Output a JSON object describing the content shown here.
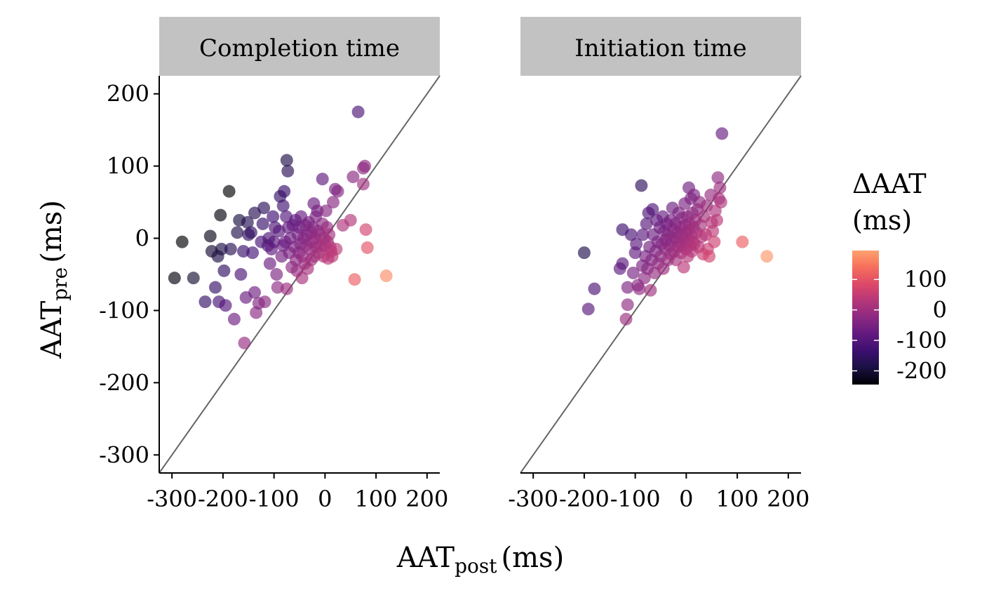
{
  "chart_data": {
    "type": "scatter",
    "ylabel": {
      "base": "AAT",
      "sub": "pre",
      "unit": "(ms)"
    },
    "xlabel": {
      "base": "AAT",
      "sub": "post",
      "unit": "(ms)"
    },
    "xlim": [
      -325,
      225
    ],
    "ylim": [
      -325,
      225
    ],
    "xticks": [
      -300,
      -200,
      -100,
      0,
      100,
      200
    ],
    "yticks": [
      -300,
      -200,
      -100,
      0,
      100,
      200
    ],
    "reference_line": "identity (y = x)",
    "grid": false,
    "legend": {
      "title_line1": "ΔAAT",
      "title_line2": "(ms)",
      "placement": "right",
      "range": [
        -245,
        195
      ],
      "ticks": [
        100,
        0,
        -100,
        -200
      ],
      "colormap": "magma"
    },
    "panels": [
      {
        "title": "Completion time",
        "points": [
          [
            -295,
            -55
          ],
          [
            -280,
            -5
          ],
          [
            -258,
            -55
          ],
          [
            -235,
            -88
          ],
          [
            -225,
            3
          ],
          [
            -222,
            -18
          ],
          [
            -215,
            -68
          ],
          [
            -210,
            -25
          ],
          [
            -208,
            -88
          ],
          [
            -205,
            32
          ],
          [
            -203,
            -15
          ],
          [
            -198,
            -45
          ],
          [
            -195,
            -93
          ],
          [
            -188,
            65
          ],
          [
            -185,
            -15
          ],
          [
            -178,
            -112
          ],
          [
            -172,
            8
          ],
          [
            -168,
            25
          ],
          [
            -165,
            -50
          ],
          [
            -160,
            -18
          ],
          [
            -158,
            -145
          ],
          [
            -155,
            -82
          ],
          [
            -152,
            22
          ],
          [
            -150,
            5
          ],
          [
            -145,
            8
          ],
          [
            -142,
            -20
          ],
          [
            -138,
            -75
          ],
          [
            -138,
            35
          ],
          [
            -135,
            -103
          ],
          [
            -130,
            -90
          ],
          [
            -125,
            -5
          ],
          [
            -122,
            20
          ],
          [
            -120,
            42
          ],
          [
            -118,
            -88
          ],
          [
            -112,
            -10
          ],
          [
            -110,
            0
          ],
          [
            -108,
            -35
          ],
          [
            -105,
            -15
          ],
          [
            -102,
            30
          ],
          [
            -100,
            -5
          ],
          [
            -98,
            15
          ],
          [
            -95,
            -50
          ],
          [
            -93,
            -68
          ],
          [
            -90,
            10
          ],
          [
            -88,
            58
          ],
          [
            -85,
            -25
          ],
          [
            -82,
            45
          ],
          [
            -82,
            -10
          ],
          [
            -80,
            65
          ],
          [
            -78,
            -5
          ],
          [
            -76,
            30
          ],
          [
            -75,
            108
          ],
          [
            -75,
            -70
          ],
          [
            -73,
            93
          ],
          [
            -72,
            15
          ],
          [
            -70,
            -20
          ],
          [
            -68,
            0
          ],
          [
            -65,
            -40
          ],
          [
            -63,
            18
          ],
          [
            -60,
            -12
          ],
          [
            -58,
            25
          ],
          [
            -57,
            -30
          ],
          [
            -55,
            -45
          ],
          [
            -53,
            5
          ],
          [
            -51,
            -20
          ],
          [
            -50,
            15
          ],
          [
            -48,
            -8
          ],
          [
            -47,
            30
          ],
          [
            -45,
            -55
          ],
          [
            -44,
            -25
          ],
          [
            -42,
            0
          ],
          [
            -40,
            -35
          ],
          [
            -38,
            18
          ],
          [
            -37,
            -10
          ],
          [
            -35,
            5
          ],
          [
            -34,
            -42
          ],
          [
            -32,
            22
          ],
          [
            -30,
            -15
          ],
          [
            -28,
            8
          ],
          [
            -27,
            -30
          ],
          [
            -25,
            -5
          ],
          [
            -24,
            15
          ],
          [
            -22,
            48
          ],
          [
            -21,
            -25
          ],
          [
            -20,
            0
          ],
          [
            -18,
            30
          ],
          [
            -17,
            -12
          ],
          [
            -15,
            38
          ],
          [
            -14,
            10
          ],
          [
            -12,
            -20
          ],
          [
            -10,
            5
          ],
          [
            -8,
            -10
          ],
          [
            -5,
            82
          ],
          [
            -5,
            20
          ],
          [
            -3,
            -25
          ],
          [
            -2,
            0
          ],
          [
            0,
            -10
          ],
          [
            2,
            38
          ],
          [
            4,
            15
          ],
          [
            5,
            -5
          ],
          [
            6,
            -28
          ],
          [
            8,
            5
          ],
          [
            10,
            -12
          ],
          [
            12,
            -18
          ],
          [
            14,
            -25
          ],
          [
            16,
            50
          ],
          [
            20,
            68
          ],
          [
            22,
            -15
          ],
          [
            25,
            65
          ],
          [
            35,
            18
          ],
          [
            50,
            25
          ],
          [
            55,
            85
          ],
          [
            58,
            -57
          ],
          [
            65,
            175
          ],
          [
            75,
            75
          ],
          [
            75,
            97
          ],
          [
            78,
            100
          ],
          [
            80,
            12
          ],
          [
            83,
            -13
          ],
          [
            120,
            -52
          ]
        ]
      },
      {
        "title": "Initiation time",
        "points": [
          [
            -200,
            -20
          ],
          [
            -192,
            -98
          ],
          [
            -180,
            -70
          ],
          [
            -130,
            -42
          ],
          [
            -125,
            -35
          ],
          [
            -125,
            12
          ],
          [
            -118,
            -112
          ],
          [
            -115,
            -92
          ],
          [
            -115,
            -68
          ],
          [
            -108,
            5
          ],
          [
            -104,
            -48
          ],
          [
            -100,
            -20
          ],
          [
            -98,
            -8
          ],
          [
            -95,
            -65
          ],
          [
            -92,
            -70
          ],
          [
            -88,
            73
          ],
          [
            -86,
            -38
          ],
          [
            -85,
            5
          ],
          [
            -82,
            -55
          ],
          [
            -80,
            -25
          ],
          [
            -78,
            20
          ],
          [
            -76,
            -42
          ],
          [
            -74,
            35
          ],
          [
            -72,
            -12
          ],
          [
            -70,
            -72
          ],
          [
            -68,
            -30
          ],
          [
            -66,
            40
          ],
          [
            -65,
            5
          ],
          [
            -62,
            -48
          ],
          [
            -60,
            -18
          ],
          [
            -58,
            25
          ],
          [
            -56,
            -5
          ],
          [
            -55,
            -35
          ],
          [
            -52,
            15
          ],
          [
            -50,
            -25
          ],
          [
            -48,
            -8
          ],
          [
            -46,
            30
          ],
          [
            -45,
            -42
          ],
          [
            -43,
            10
          ],
          [
            -41,
            -15
          ],
          [
            -40,
            -2
          ],
          [
            -38,
            20
          ],
          [
            -36,
            -30
          ],
          [
            -35,
            5
          ],
          [
            -33,
            -10
          ],
          [
            -31,
            25
          ],
          [
            -30,
            -22
          ],
          [
            -28,
            -3
          ],
          [
            -27,
            42
          ],
          [
            -25,
            12
          ],
          [
            -24,
            -18
          ],
          [
            -22,
            0
          ],
          [
            -21,
            20
          ],
          [
            -20,
            -30
          ],
          [
            -18,
            8
          ],
          [
            -16,
            -12
          ],
          [
            -15,
            35
          ],
          [
            -14,
            -5
          ],
          [
            -12,
            15
          ],
          [
            -10,
            -20
          ],
          [
            -9,
            5
          ],
          [
            -8,
            28
          ],
          [
            -6,
            -10
          ],
          [
            -5,
            -40
          ],
          [
            -4,
            0
          ],
          [
            -3,
            48
          ],
          [
            -2,
            18
          ],
          [
            -1,
            -15
          ],
          [
            0,
            8
          ],
          [
            1,
            -5
          ],
          [
            2,
            30
          ],
          [
            3,
            -25
          ],
          [
            4,
            12
          ],
          [
            5,
            70
          ],
          [
            6,
            -2
          ],
          [
            7,
            20
          ],
          [
            8,
            -10
          ],
          [
            9,
            55
          ],
          [
            10,
            5
          ],
          [
            11,
            -18
          ],
          [
            12,
            35
          ],
          [
            13,
            -5
          ],
          [
            14,
            15
          ],
          [
            15,
            60
          ],
          [
            16,
            -8
          ],
          [
            18,
            25
          ],
          [
            20,
            8
          ],
          [
            22,
            40
          ],
          [
            24,
            -12
          ],
          [
            26,
            50
          ],
          [
            28,
            18
          ],
          [
            30,
            2
          ],
          [
            33,
            -22
          ],
          [
            35,
            30
          ],
          [
            38,
            5
          ],
          [
            40,
            45
          ],
          [
            42,
            -15
          ],
          [
            45,
            -25
          ],
          [
            48,
            60
          ],
          [
            50,
            22
          ],
          [
            52,
            10
          ],
          [
            55,
            -5
          ],
          [
            57,
            38
          ],
          [
            60,
            25
          ],
          [
            62,
            84
          ],
          [
            64,
            55
          ],
          [
            66,
            70
          ],
          [
            68,
            50
          ],
          [
            70,
            145
          ],
          [
            110,
            -5
          ],
          [
            158,
            -25
          ]
        ]
      }
    ]
  }
}
